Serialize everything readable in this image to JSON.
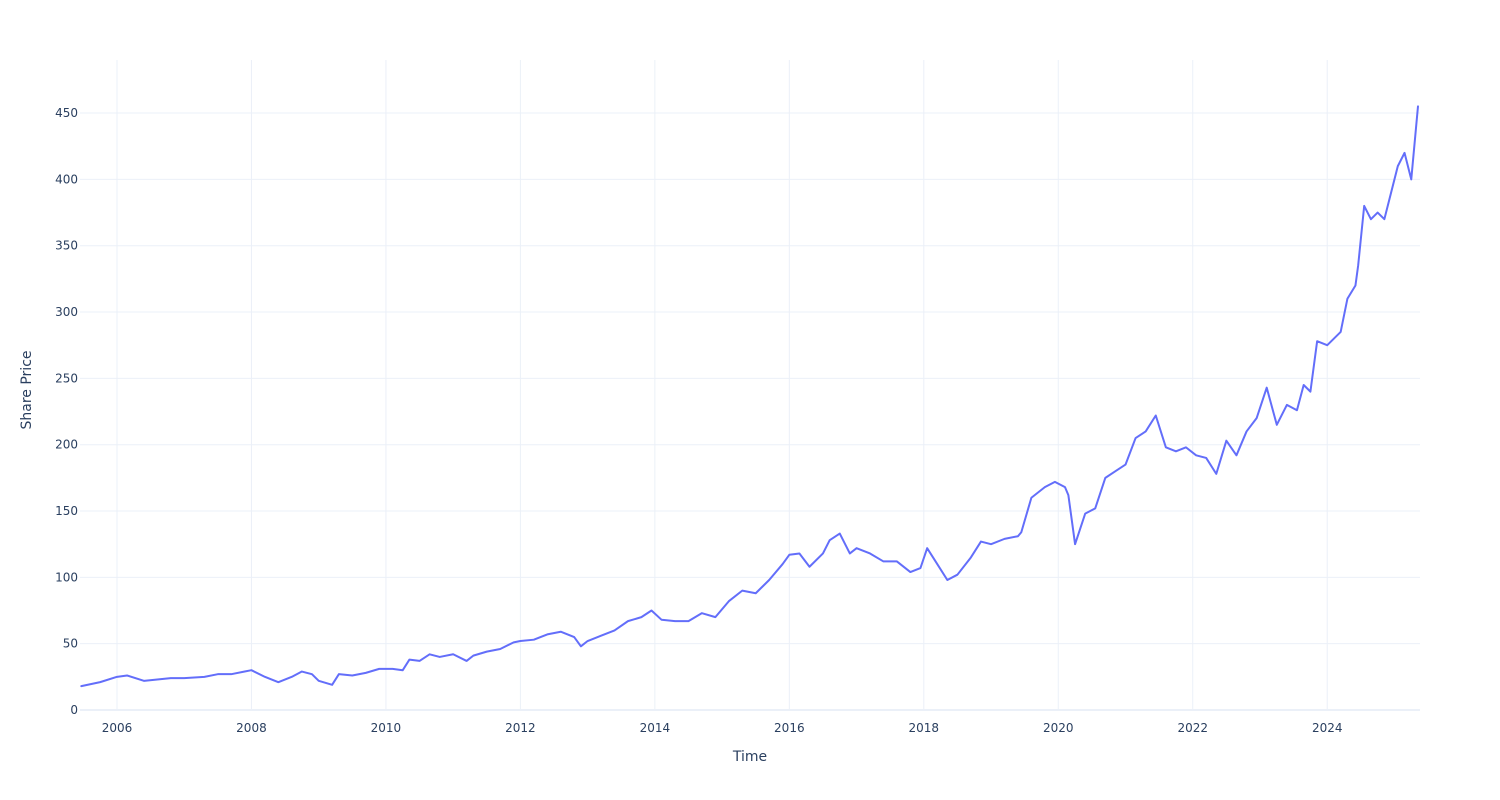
{
  "chart_data": {
    "type": "line",
    "title": "",
    "xlabel": "Time",
    "ylabel": "Share Price",
    "xlim": [
      2005.45,
      2025.38
    ],
    "ylim": [
      0,
      490
    ],
    "x_ticks": [
      2006,
      2008,
      2010,
      2012,
      2014,
      2016,
      2018,
      2020,
      2022,
      2024
    ],
    "x_tick_labels": [
      "2006",
      "2008",
      "2010",
      "2012",
      "2014",
      "2016",
      "2018",
      "2020",
      "2022",
      "2024"
    ],
    "y_ticks": [
      0,
      50,
      100,
      150,
      200,
      250,
      300,
      350,
      400,
      450
    ],
    "y_tick_labels": [
      "0",
      "50",
      "100",
      "150",
      "200",
      "250",
      "300",
      "350",
      "400",
      "450"
    ],
    "grid": true,
    "line_color": "#636efa",
    "series": [
      {
        "name": "",
        "x": [
          2005.47,
          2005.75,
          2006.0,
          2006.15,
          2006.4,
          2006.6,
          2006.8,
          2007.0,
          2007.3,
          2007.5,
          2007.7,
          2007.9,
          2008.0,
          2008.2,
          2008.4,
          2008.6,
          2008.75,
          2008.9,
          2009.0,
          2009.2,
          2009.3,
          2009.5,
          2009.7,
          2009.9,
          2010.1,
          2010.25,
          2010.35,
          2010.5,
          2010.65,
          2010.8,
          2011.0,
          2011.2,
          2011.3,
          2011.5,
          2011.7,
          2011.9,
          2012.0,
          2012.2,
          2012.4,
          2012.6,
          2012.8,
          2012.9,
          2013.0,
          2013.2,
          2013.4,
          2013.6,
          2013.8,
          2013.95,
          2014.1,
          2014.3,
          2014.5,
          2014.7,
          2014.9,
          2015.1,
          2015.3,
          2015.5,
          2015.7,
          2015.9,
          2016.0,
          2016.15,
          2016.3,
          2016.5,
          2016.6,
          2016.75,
          2016.9,
          2017.0,
          2017.2,
          2017.4,
          2017.6,
          2017.8,
          2017.95,
          2018.05,
          2018.2,
          2018.35,
          2018.5,
          2018.7,
          2018.85,
          2019.0,
          2019.2,
          2019.4,
          2019.45,
          2019.6,
          2019.8,
          2019.95,
          2020.1,
          2020.15,
          2020.25,
          2020.4,
          2020.55,
          2020.7,
          2020.85,
          2021.0,
          2021.15,
          2021.3,
          2021.45,
          2021.6,
          2021.75,
          2021.9,
          2022.05,
          2022.2,
          2022.35,
          2022.5,
          2022.65,
          2022.8,
          2022.95,
          2023.1,
          2023.25,
          2023.4,
          2023.55,
          2023.65,
          2023.75,
          2023.85,
          2024.0,
          2024.1,
          2024.2,
          2024.3,
          2024.42,
          2024.46,
          2024.55,
          2024.65,
          2024.75,
          2024.85,
          2024.95,
          2025.05,
          2025.15,
          2025.25,
          2025.35
        ],
        "y": [
          18,
          21,
          25,
          26,
          22,
          23,
          24,
          24,
          25,
          27,
          27,
          29,
          30,
          25,
          21,
          25,
          29,
          27,
          22,
          19,
          27,
          26,
          28,
          31,
          31,
          30,
          38,
          37,
          42,
          40,
          42,
          37,
          41,
          44,
          46,
          51,
          52,
          53,
          57,
          59,
          55,
          48,
          52,
          56,
          60,
          67,
          70,
          75,
          68,
          67,
          67,
          73,
          70,
          82,
          90,
          88,
          98,
          110,
          117,
          118,
          108,
          118,
          128,
          133,
          118,
          122,
          118,
          112,
          112,
          104,
          107,
          122,
          110,
          98,
          102,
          115,
          127,
          125,
          129,
          131,
          134,
          160,
          168,
          172,
          168,
          162,
          125,
          148,
          152,
          175,
          180,
          185,
          205,
          210,
          222,
          198,
          195,
          198,
          192,
          190,
          178,
          203,
          192,
          210,
          220,
          243,
          215,
          230,
          226,
          245,
          240,
          278,
          275,
          280,
          285,
          310,
          320,
          335,
          380,
          370,
          375,
          370,
          390,
          410,
          420,
          400,
          455
        ]
      }
    ]
  }
}
